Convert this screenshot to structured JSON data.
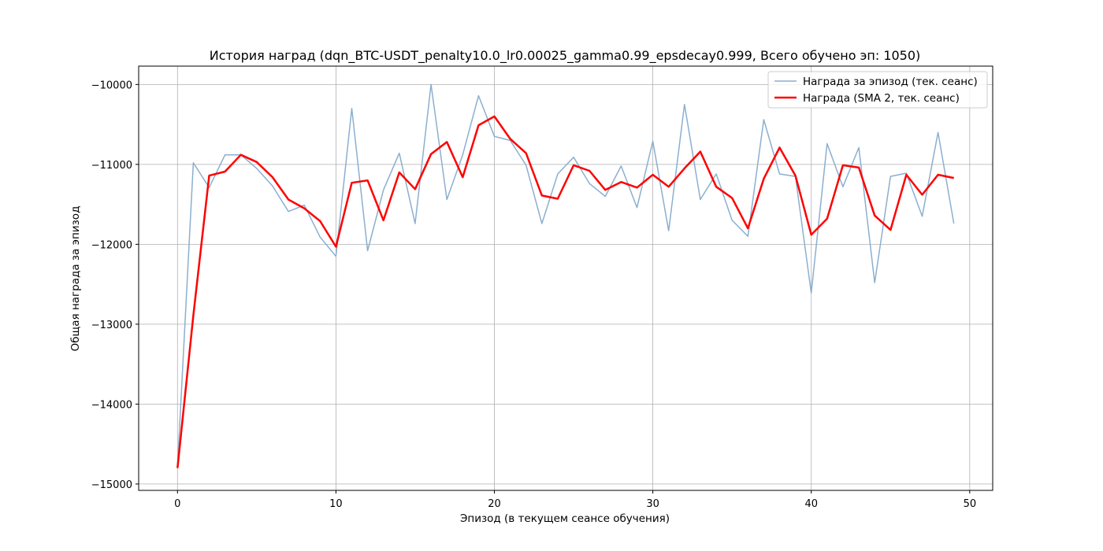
{
  "chart_data": {
    "type": "line",
    "title": "История наград (dqn_BTC-USDT_penalty10.0_lr0.00025_gamma0.99_epsdecay0.999, Всего обучено эп: 1050)",
    "xlabel": "Эпизод (в текущем сеансе обучения)",
    "ylabel": "Общая награда за эпизод",
    "xlim": [
      -2.45,
      51.45
    ],
    "ylim": [
      -15080,
      -9770
    ],
    "xticks": [
      0,
      10,
      20,
      30,
      40,
      50
    ],
    "xtick_labels": [
      "0",
      "10",
      "20",
      "30",
      "40",
      "50"
    ],
    "yticks": [
      -15000,
      -14000,
      -13000,
      -12000,
      -11000,
      -10000
    ],
    "ytick_labels": [
      "−15000",
      "−14000",
      "−13000",
      "−12000",
      "−11000",
      "−10000"
    ],
    "grid": true,
    "legend_position": "top-right",
    "x": [
      0,
      1,
      2,
      3,
      4,
      5,
      6,
      7,
      8,
      9,
      10,
      11,
      12,
      13,
      14,
      15,
      16,
      17,
      18,
      19,
      20,
      21,
      22,
      23,
      24,
      25,
      26,
      27,
      28,
      29,
      30,
      31,
      32,
      33,
      34,
      35,
      36,
      37,
      38,
      39,
      40,
      41,
      42,
      43,
      44,
      45,
      46,
      47,
      48,
      49
    ],
    "series": [
      {
        "name": "Награда за эпизод (тек. сеанс)",
        "color": "#8bafcf",
        "values": [
          -14790,
          -10980,
          -11290,
          -10880,
          -10880,
          -11050,
          -11270,
          -11590,
          -11510,
          -11910,
          -12150,
          -10300,
          -12080,
          -11320,
          -10860,
          -11740,
          -10000,
          -11440,
          -10880,
          -10140,
          -10650,
          -10700,
          -11010,
          -11740,
          -11120,
          -10910,
          -11240,
          -11400,
          -11020,
          -11540,
          -10710,
          -11830,
          -10250,
          -11440,
          -11120,
          -11700,
          -11900,
          -10440,
          -11120,
          -11150,
          -12610,
          -10740,
          -11280,
          -10790,
          -12480,
          -11150,
          -11110,
          -11650,
          -10600,
          -11740
        ]
      },
      {
        "name": "Награда (SMA 2, тек. сеанс)",
        "color": "#ff0000",
        "values": [
          -14800,
          -12890,
          -11140,
          -11090,
          -10880,
          -10970,
          -11160,
          -11440,
          -11550,
          -11710,
          -12030,
          -11230,
          -11200,
          -11700,
          -11100,
          -11310,
          -10870,
          -10720,
          -11160,
          -10510,
          -10400,
          -10680,
          -10860,
          -11390,
          -11430,
          -11010,
          -11080,
          -11320,
          -11220,
          -11290,
          -11130,
          -11280,
          -11050,
          -10840,
          -11280,
          -11420,
          -11800,
          -11180,
          -10790,
          -11140,
          -11880,
          -11680,
          -11010,
          -11040,
          -11640,
          -11820,
          -11130,
          -11380,
          -11130,
          -11170
        ]
      }
    ]
  }
}
